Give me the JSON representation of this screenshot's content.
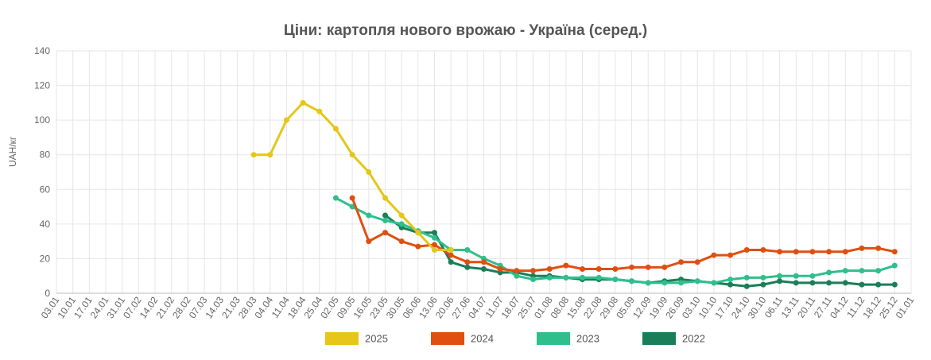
{
  "chart_data": {
    "type": "line",
    "title": "Ціни: картопля нового врожаю - Україна (серед.)",
    "xlabel": "",
    "ylabel": "UAH/кг",
    "ylim": [
      0,
      140
    ],
    "yticks": [
      0,
      20,
      40,
      60,
      80,
      100,
      120,
      140
    ],
    "grid": true,
    "legend_position": "bottom",
    "categories": [
      "03.01",
      "10.01",
      "17.01",
      "24.01",
      "31.01",
      "07.02",
      "14.02",
      "21.02",
      "28.02",
      "07.03",
      "14.03",
      "21.03",
      "28.03",
      "04.04",
      "11.04",
      "18.04",
      "25.04",
      "02.05",
      "09.05",
      "16.05",
      "23.05",
      "30.05",
      "06.06",
      "13.06",
      "20.06",
      "27.06",
      "04.07",
      "11.07",
      "18.07",
      "25.07",
      "01.08",
      "08.08",
      "15.08",
      "22.08",
      "29.08",
      "05.09",
      "12.09",
      "19.09",
      "26.09",
      "03.10",
      "10.10",
      "17.10",
      "24.10",
      "30.10",
      "06.11",
      "13.11",
      "20.11",
      "27.11",
      "04.12",
      "11.12",
      "18.12",
      "25.12",
      "01.01"
    ],
    "series": [
      {
        "name": "2025",
        "color": "#e5c619",
        "values": [
          null,
          null,
          null,
          null,
          null,
          null,
          null,
          null,
          null,
          null,
          null,
          null,
          80,
          80,
          100,
          110,
          105,
          95,
          80,
          70,
          55,
          45,
          35,
          25,
          25,
          null,
          null,
          null,
          null,
          null,
          null,
          null,
          null,
          null,
          null,
          null,
          null,
          null,
          null,
          null,
          null,
          null,
          null,
          null,
          null,
          null,
          null,
          null,
          null,
          null,
          null,
          null,
          null
        ]
      },
      {
        "name": "2024",
        "color": "#e04f10",
        "values": [
          null,
          null,
          null,
          null,
          null,
          null,
          null,
          null,
          null,
          null,
          null,
          null,
          null,
          null,
          null,
          null,
          null,
          null,
          55,
          30,
          35,
          30,
          27,
          28,
          22,
          18,
          18,
          14,
          13,
          13,
          14,
          16,
          14,
          14,
          14,
          15,
          15,
          15,
          18,
          18,
          22,
          22,
          25,
          25,
          24,
          24,
          24,
          24,
          24,
          26,
          26,
          24,
          null
        ]
      },
      {
        "name": "2023",
        "color": "#2fbf8c",
        "values": [
          null,
          null,
          null,
          null,
          null,
          null,
          null,
          null,
          null,
          null,
          null,
          null,
          null,
          null,
          null,
          null,
          null,
          55,
          50,
          45,
          42,
          40,
          36,
          32,
          25,
          25,
          20,
          16,
          10,
          8,
          9,
          9,
          9,
          9,
          8,
          7,
          6,
          6,
          6,
          7,
          6,
          8,
          9,
          9,
          10,
          10,
          10,
          12,
          13,
          13,
          13,
          16,
          null
        ]
      },
      {
        "name": "2022",
        "color": "#1a7e58",
        "values": [
          null,
          null,
          null,
          null,
          null,
          null,
          null,
          null,
          null,
          null,
          null,
          null,
          null,
          null,
          null,
          null,
          null,
          null,
          null,
          null,
          45,
          38,
          35,
          35,
          18,
          15,
          14,
          12,
          12,
          10,
          10,
          9,
          8,
          8,
          8,
          7,
          6,
          7,
          8,
          7,
          6,
          5,
          4,
          5,
          7,
          6,
          6,
          6,
          6,
          5,
          5,
          5,
          null
        ]
      }
    ]
  }
}
